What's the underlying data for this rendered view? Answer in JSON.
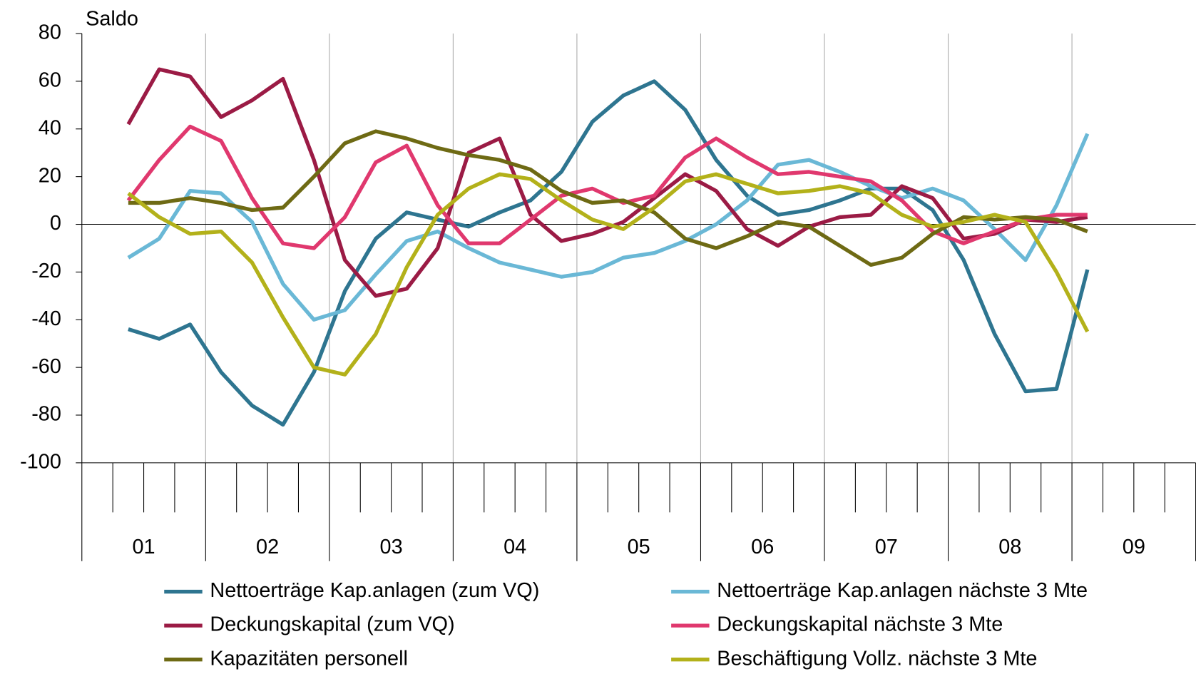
{
  "chart_data": {
    "type": "line",
    "ylabel": "Saldo",
    "categories": [
      null,
      null,
      null,
      null,
      null,
      null,
      null,
      null,
      null,
      null,
      null,
      null,
      null,
      null,
      null,
      null,
      null,
      null,
      null,
      null,
      null,
      null,
      null,
      null,
      null,
      null,
      null,
      null,
      null,
      null,
      null,
      null
    ],
    "year_labels": [
      "01",
      "02",
      "03",
      "04",
      "05",
      "06",
      "07",
      "08",
      "09"
    ],
    "ylim": [
      -100,
      80
    ],
    "yticks": [
      -100,
      -80,
      -60,
      -40,
      -20,
      0,
      20,
      40,
      60,
      80
    ],
    "series": [
      {
        "name": "Nettoerträge Kap.anlagen (zum VQ)",
        "color": "#2e7590",
        "values": [
          -44,
          -48,
          -42,
          -62,
          -76,
          -84,
          -62,
          -28,
          -6,
          5,
          2,
          -1,
          5,
          10,
          22,
          43,
          54,
          60,
          48,
          27,
          12,
          4,
          6,
          10,
          15,
          15,
          6,
          -15,
          -46,
          -70,
          -69,
          -19
        ]
      },
      {
        "name": "Nettoerträge Kap.anlagen nächste 3 Mte",
        "color": "#6ab8d6",
        "values": [
          -14,
          -6,
          14,
          13,
          1,
          -25,
          -40,
          -36,
          -21,
          -7,
          -3,
          -10,
          -16,
          -19,
          -22,
          -20,
          -14,
          -12,
          -7,
          0,
          10,
          25,
          27,
          22,
          16,
          11,
          15,
          10,
          -2,
          -15,
          8,
          38
        ]
      },
      {
        "name": "Deckungskapital (zum VQ)",
        "color": "#9b1b45",
        "values": [
          42,
          65,
          62,
          45,
          52,
          61,
          27,
          -15,
          -30,
          -27,
          -10,
          30,
          36,
          4,
          -7,
          -4,
          1,
          11,
          21,
          14,
          -2,
          -9,
          -1,
          3,
          4,
          16,
          11,
          -6,
          -4,
          2,
          1,
          3
        ]
      },
      {
        "name": "Deckungskapital nächste 3 Mte",
        "color": "#e0386e",
        "values": [
          10,
          27,
          41,
          35,
          11,
          -8,
          -10,
          3,
          26,
          33,
          8,
          -8,
          -8,
          2,
          12,
          15,
          9,
          12,
          28,
          36,
          28,
          21,
          22,
          20,
          18,
          10,
          -3,
          -8,
          -3,
          2,
          4,
          4
        ]
      },
      {
        "name": "Kapazitäten personell",
        "color": "#6e6a14",
        "values": [
          9,
          9,
          11,
          9,
          6,
          7,
          20,
          34,
          39,
          36,
          32,
          29,
          27,
          23,
          14,
          9,
          10,
          5,
          -6,
          -10,
          -5,
          1,
          -1,
          -9,
          -17,
          -14,
          -4,
          3,
          2,
          3,
          2,
          -3
        ]
      },
      {
        "name": "Beschäftigung Vollz. nächste 3 Mte",
        "color": "#b3b11a",
        "values": [
          13,
          3,
          -4,
          -3,
          -16,
          -39,
          -60,
          -63,
          -46,
          -18,
          4,
          15,
          21,
          19,
          10,
          2,
          -2,
          7,
          18,
          21,
          17,
          13,
          14,
          16,
          13,
          4,
          -1,
          1,
          4,
          1,
          -20,
          -45
        ]
      }
    ]
  }
}
